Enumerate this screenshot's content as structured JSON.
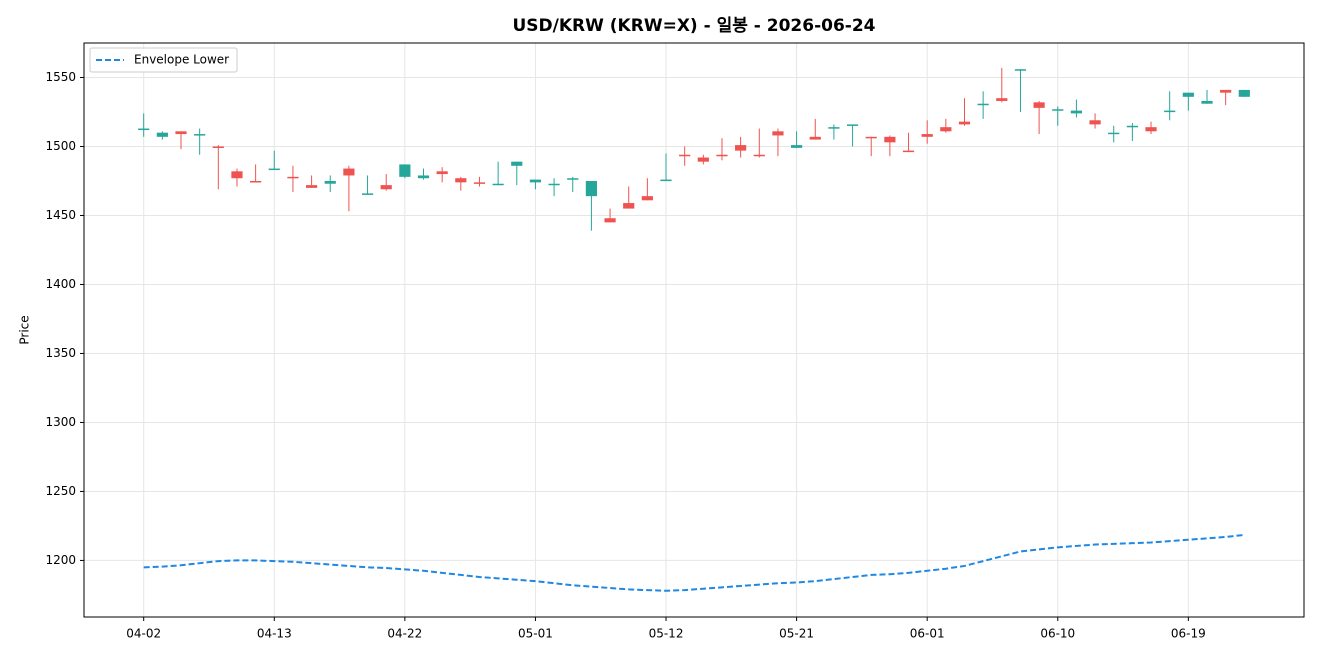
{
  "chart_data": {
    "type": "candlestick",
    "title": "USD/KRW (KRW=X) - 일봉 - 2026-06-24",
    "ylabel": "Price",
    "categories": [
      "04-02",
      null,
      null,
      null,
      null,
      null,
      null,
      "04-13",
      null,
      null,
      null,
      null,
      null,
      null,
      "04-22",
      null,
      null,
      null,
      null,
      null,
      null,
      "05-01",
      null,
      null,
      null,
      null,
      null,
      null,
      "05-12",
      null,
      null,
      null,
      null,
      null,
      null,
      "05-21",
      null,
      null,
      null,
      null,
      null,
      null,
      "06-01",
      null,
      null,
      null,
      null,
      null,
      null,
      "06-10",
      null,
      null,
      null,
      null,
      null,
      null,
      "06-19",
      null,
      null,
      null
    ],
    "open": [
      1512,
      1507,
      1511,
      1508,
      1500,
      1482,
      1475,
      1483,
      1478,
      1472,
      1473,
      1484,
      1465,
      1472,
      1478,
      1477,
      1482,
      1477,
      1474,
      1472,
      1486,
      1474,
      1472,
      1476,
      1464,
      1448,
      1459,
      1464,
      1475,
      1494,
      1492,
      1494,
      1501,
      1494,
      1511,
      1499,
      1507,
      1513,
      1515,
      1507,
      1507,
      1497,
      1509,
      1514,
      1518,
      1530,
      1535,
      1555,
      1532,
      1526,
      1524,
      1519,
      1509,
      1514,
      1514,
      1525,
      1536,
      1531,
      1541,
      1536
    ],
    "high": [
      1524,
      1511,
      1511,
      1513,
      1501,
      1484,
      1487,
      1497,
      1486,
      1479,
      1479,
      1486,
      1479,
      1480,
      1487,
      1484,
      1485,
      1478,
      1478,
      1489,
      1489,
      1476,
      1477,
      1478,
      1475,
      1455,
      1471,
      1477,
      1495,
      1500,
      1494,
      1506,
      1507,
      1513,
      1513,
      1511,
      1520,
      1516,
      1516,
      1507,
      1508,
      1510,
      1519,
      1520,
      1535,
      1540,
      1557,
      1556,
      1533,
      1529,
      1534,
      1524,
      1515,
      1517,
      1518,
      1540,
      1539,
      1541,
      1541,
      1541
    ],
    "low": [
      1507,
      1505,
      1498,
      1494,
      1469,
      1471,
      1474,
      1483,
      1467,
      1470,
      1467,
      1453,
      1465,
      1468,
      1477,
      1476,
      1474,
      1468,
      1471,
      1472,
      1472,
      1469,
      1464,
      1467,
      1439,
      1445,
      1455,
      1461,
      1475,
      1486,
      1487,
      1490,
      1492,
      1492,
      1493,
      1499,
      1505,
      1505,
      1500,
      1493,
      1493,
      1496,
      1502,
      1510,
      1515,
      1520,
      1532,
      1525,
      1509,
      1515,
      1521,
      1513,
      1503,
      1504,
      1509,
      1519,
      1526,
      1531,
      1530,
      1536
    ],
    "close": [
      1513,
      1510,
      1509,
      1509,
      1499,
      1477,
      1474,
      1484,
      1477,
      1470,
      1475,
      1479,
      1466,
      1469,
      1487,
      1479,
      1480,
      1474,
      1473,
      1473,
      1489,
      1476,
      1473,
      1477,
      1475,
      1445,
      1455,
      1461,
      1476,
      1493,
      1489,
      1493,
      1497,
      1493,
      1508,
      1501,
      1505,
      1514,
      1516,
      1506,
      1503,
      1496,
      1507,
      1511,
      1516,
      1531,
      1533,
      1556,
      1528,
      1527,
      1526,
      1516,
      1510,
      1515,
      1511,
      1526,
      1539,
      1533,
      1539,
      1541
    ],
    "up_color": "#26a69a",
    "down_color": "#ef5350",
    "series": [
      {
        "name": "Envelope Lower",
        "color": "#1e88e5",
        "values": [
          1195,
          1195.5,
          1196.5,
          1198,
          1199.5,
          1200,
          1200,
          1199.5,
          1199,
          1198,
          1197,
          1196,
          1195,
          1194.5,
          1193.5,
          1192.5,
          1191,
          1189.5,
          1188,
          1187,
          1186,
          1185,
          1183.5,
          1182,
          1181,
          1180,
          1179,
          1178.5,
          1178,
          1178.5,
          1179.5,
          1180.5,
          1181.5,
          1182.5,
          1183.5,
          1184,
          1185,
          1186.5,
          1188,
          1189.5,
          1190,
          1191,
          1192.5,
          1194,
          1196,
          1199.5,
          1203,
          1206.5,
          1208,
          1209.5,
          1210.5,
          1211.5,
          1212,
          1212.5,
          1213,
          1214,
          1215,
          1216,
          1217,
          1218.5
        ]
      }
    ],
    "xlim": [
      -3.2,
      62.2
    ],
    "ylim": [
      1159,
      1575
    ],
    "yticks": [
      1200,
      1250,
      1300,
      1350,
      1400,
      1450,
      1500,
      1550
    ],
    "grid": true,
    "legend": "upper left"
  }
}
